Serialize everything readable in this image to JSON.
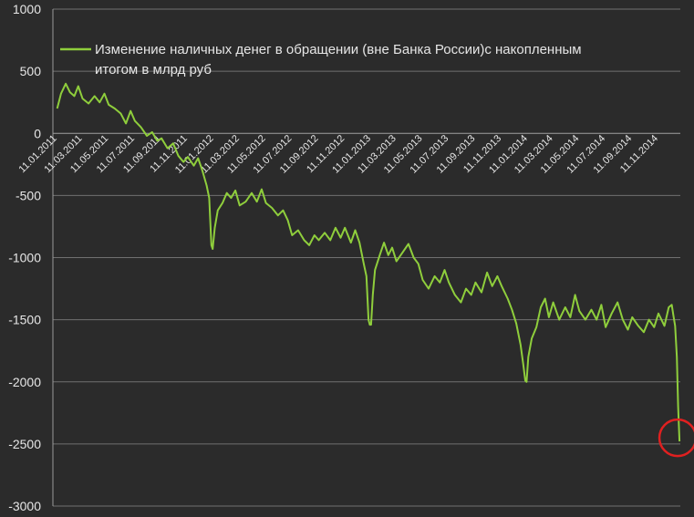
{
  "chart_data": {
    "type": "line",
    "legend": {
      "lines": [
        "Изменение наличных денег в обращении (вне Банка России)с накопленным",
        "итогом в млрд руб"
      ],
      "placement": "top-left",
      "color": "#8fce3c"
    },
    "ylim": [
      -3000,
      1000
    ],
    "yticks": [
      "1000",
      "500",
      "0",
      "-500",
      "-1000",
      "-1500",
      "-2000",
      "-2500",
      "-3000"
    ],
    "xticks": [
      "11.01.2011",
      "11.03.2011",
      "11.05.2011",
      "11.07.2011",
      "11.09.2011",
      "11.11.2011",
      "11.01.2012",
      "11.03.2012",
      "11.05.2012",
      "11.07.2012",
      "11.09.2012",
      "11.11.2012",
      "11.01.2013",
      "11.03.2013",
      "11.05.2013",
      "11.07.2013",
      "11.09.2013",
      "11.11.2013",
      "11.01.2014",
      "11.03.2014",
      "11.05.2014",
      "11.07.2014",
      "11.09.2014",
      "11.11.2014"
    ],
    "grid": "horizontal",
    "series": [
      {
        "color": "#8fce3c",
        "points": [
          [
            "2011-01-11",
            200
          ],
          [
            "2011-01-20",
            320
          ],
          [
            "2011-01-31",
            400
          ],
          [
            "2011-02-10",
            330
          ],
          [
            "2011-02-20",
            300
          ],
          [
            "2011-03-01",
            380
          ],
          [
            "2011-03-11",
            280
          ],
          [
            "2011-03-25",
            240
          ],
          [
            "2011-04-08",
            300
          ],
          [
            "2011-04-20",
            250
          ],
          [
            "2011-05-01",
            320
          ],
          [
            "2011-05-11",
            230
          ],
          [
            "2011-05-25",
            200
          ],
          [
            "2011-06-08",
            160
          ],
          [
            "2011-06-20",
            80
          ],
          [
            "2011-07-01",
            180
          ],
          [
            "2011-07-11",
            100
          ],
          [
            "2011-07-25",
            50
          ],
          [
            "2011-08-08",
            -20
          ],
          [
            "2011-08-20",
            10
          ],
          [
            "2011-09-01",
            -60
          ],
          [
            "2011-09-11",
            -40
          ],
          [
            "2011-09-25",
            -120
          ],
          [
            "2011-10-08",
            -80
          ],
          [
            "2011-10-20",
            -180
          ],
          [
            "2011-11-01",
            -230
          ],
          [
            "2011-11-11",
            -190
          ],
          [
            "2011-11-25",
            -260
          ],
          [
            "2011-12-05",
            -200
          ],
          [
            "2011-12-15",
            -300
          ],
          [
            "2011-12-25",
            -420
          ],
          [
            "2011-12-31",
            -520
          ],
          [
            "2012-01-05",
            -900
          ],
          [
            "2012-01-08",
            -930
          ],
          [
            "2012-01-13",
            -760
          ],
          [
            "2012-01-20",
            -620
          ],
          [
            "2012-01-31",
            -560
          ],
          [
            "2012-02-10",
            -480
          ],
          [
            "2012-02-20",
            -520
          ],
          [
            "2012-03-01",
            -460
          ],
          [
            "2012-03-11",
            -580
          ],
          [
            "2012-03-25",
            -550
          ],
          [
            "2012-04-08",
            -480
          ],
          [
            "2012-04-20",
            -550
          ],
          [
            "2012-05-01",
            -450
          ],
          [
            "2012-05-11",
            -560
          ],
          [
            "2012-05-25",
            -600
          ],
          [
            "2012-06-08",
            -660
          ],
          [
            "2012-06-20",
            -620
          ],
          [
            "2012-07-01",
            -700
          ],
          [
            "2012-07-11",
            -820
          ],
          [
            "2012-07-25",
            -780
          ],
          [
            "2012-08-08",
            -860
          ],
          [
            "2012-08-20",
            -900
          ],
          [
            "2012-09-01",
            -820
          ],
          [
            "2012-09-11",
            -860
          ],
          [
            "2012-09-25",
            -800
          ],
          [
            "2012-10-08",
            -860
          ],
          [
            "2012-10-20",
            -760
          ],
          [
            "2012-11-01",
            -840
          ],
          [
            "2012-11-11",
            -760
          ],
          [
            "2012-11-25",
            -880
          ],
          [
            "2012-12-05",
            -780
          ],
          [
            "2012-12-15",
            -880
          ],
          [
            "2012-12-25",
            -1050
          ],
          [
            "2012-12-31",
            -1150
          ],
          [
            "2013-01-05",
            -1500
          ],
          [
            "2013-01-08",
            -1540
          ],
          [
            "2013-01-11",
            -1540
          ],
          [
            "2013-01-15",
            -1300
          ],
          [
            "2013-01-20",
            -1100
          ],
          [
            "2013-01-31",
            -980
          ],
          [
            "2013-02-10",
            -880
          ],
          [
            "2013-02-20",
            -980
          ],
          [
            "2013-03-01",
            -920
          ],
          [
            "2013-03-11",
            -1030
          ],
          [
            "2013-03-25",
            -960
          ],
          [
            "2013-04-08",
            -890
          ],
          [
            "2013-04-20",
            -1000
          ],
          [
            "2013-05-01",
            -1050
          ],
          [
            "2013-05-11",
            -1180
          ],
          [
            "2013-05-25",
            -1250
          ],
          [
            "2013-06-08",
            -1150
          ],
          [
            "2013-06-20",
            -1200
          ],
          [
            "2013-07-01",
            -1100
          ],
          [
            "2013-07-11",
            -1200
          ],
          [
            "2013-07-25",
            -1300
          ],
          [
            "2013-08-08",
            -1360
          ],
          [
            "2013-08-20",
            -1250
          ],
          [
            "2013-09-01",
            -1300
          ],
          [
            "2013-09-11",
            -1200
          ],
          [
            "2013-09-25",
            -1280
          ],
          [
            "2013-10-08",
            -1120
          ],
          [
            "2013-10-20",
            -1230
          ],
          [
            "2013-11-01",
            -1150
          ],
          [
            "2013-11-11",
            -1230
          ],
          [
            "2013-11-25",
            -1330
          ],
          [
            "2013-12-05",
            -1420
          ],
          [
            "2013-12-15",
            -1530
          ],
          [
            "2013-12-25",
            -1700
          ],
          [
            "2013-12-31",
            -1850
          ],
          [
            "2014-01-05",
            -1990
          ],
          [
            "2014-01-08",
            -2000
          ],
          [
            "2014-01-12",
            -1800
          ],
          [
            "2014-01-20",
            -1650
          ],
          [
            "2014-01-31",
            -1560
          ],
          [
            "2014-02-10",
            -1400
          ],
          [
            "2014-02-20",
            -1330
          ],
          [
            "2014-03-01",
            -1480
          ],
          [
            "2014-03-11",
            -1360
          ],
          [
            "2014-03-25",
            -1500
          ],
          [
            "2014-04-08",
            -1400
          ],
          [
            "2014-04-20",
            -1480
          ],
          [
            "2014-05-01",
            -1300
          ],
          [
            "2014-05-11",
            -1430
          ],
          [
            "2014-05-25",
            -1500
          ],
          [
            "2014-06-08",
            -1420
          ],
          [
            "2014-06-20",
            -1500
          ],
          [
            "2014-07-01",
            -1380
          ],
          [
            "2014-07-11",
            -1560
          ],
          [
            "2014-07-25",
            -1450
          ],
          [
            "2014-08-08",
            -1360
          ],
          [
            "2014-08-20",
            -1500
          ],
          [
            "2014-09-01",
            -1580
          ],
          [
            "2014-09-11",
            -1480
          ],
          [
            "2014-09-25",
            -1550
          ],
          [
            "2014-10-08",
            -1600
          ],
          [
            "2014-10-20",
            -1500
          ],
          [
            "2014-11-01",
            -1560
          ],
          [
            "2014-11-11",
            -1450
          ],
          [
            "2014-11-25",
            -1550
          ],
          [
            "2014-12-05",
            -1400
          ],
          [
            "2014-12-12",
            -1380
          ],
          [
            "2014-12-16",
            -1470
          ],
          [
            "2014-12-20",
            -1550
          ],
          [
            "2014-12-24",
            -1800
          ],
          [
            "2014-12-27",
            -2200
          ],
          [
            "2014-12-30",
            -2480
          ]
        ]
      }
    ],
    "annotation": {
      "shape": "circle",
      "color": "#e02020",
      "target": "last-point"
    }
  }
}
